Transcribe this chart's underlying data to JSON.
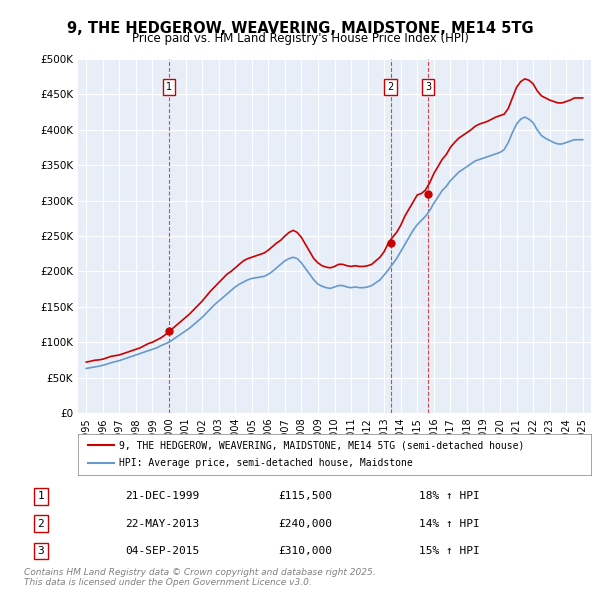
{
  "title": "9, THE HEDGEROW, WEAVERING, MAIDSTONE, ME14 5TG",
  "subtitle": "Price paid vs. HM Land Registry's House Price Index (HPI)",
  "title_fontsize": 11,
  "subtitle_fontsize": 9,
  "background_color": "#e8eef8",
  "plot_bg_color": "#e8eef8",
  "legend_label_red": "9, THE HEDGEROW, WEAVERING, MAIDSTONE, ME14 5TG (semi-detached house)",
  "legend_label_blue": "HPI: Average price, semi-detached house, Maidstone",
  "ylabel": "",
  "xlabel": "",
  "ylim": [
    0,
    500000
  ],
  "yticks": [
    0,
    50000,
    100000,
    150000,
    200000,
    250000,
    300000,
    350000,
    400000,
    450000,
    500000
  ],
  "ytick_labels": [
    "£0",
    "£50K",
    "£100K",
    "£150K",
    "£200K",
    "£250K",
    "£300K",
    "£350K",
    "£400K",
    "£450K",
    "£500K"
  ],
  "sale_dates": [
    "1999-12-21",
    "2013-05-22",
    "2015-09-04"
  ],
  "sale_prices": [
    115500,
    240000,
    310000
  ],
  "sale_labels": [
    "1",
    "2",
    "3"
  ],
  "sale_info": [
    [
      "1",
      "21-DEC-1999",
      "£115,500",
      "18% ↑ HPI"
    ],
    [
      "2",
      "22-MAY-2013",
      "£240,000",
      "14% ↑ HPI"
    ],
    [
      "3",
      "04-SEP-2015",
      "£310,000",
      "15% ↑ HPI"
    ]
  ],
  "footer_text": "Contains HM Land Registry data © Crown copyright and database right 2025.\nThis data is licensed under the Open Government Licence v3.0.",
  "red_color": "#cc0000",
  "blue_color": "#6699cc",
  "red_x": [
    1995.0,
    1995.25,
    1995.5,
    1995.75,
    1996.0,
    1996.25,
    1996.5,
    1996.75,
    1997.0,
    1997.25,
    1997.5,
    1997.75,
    1998.0,
    1998.25,
    1998.5,
    1998.75,
    1999.0,
    1999.25,
    1999.5,
    1999.75,
    2000.0,
    2000.25,
    2000.5,
    2000.75,
    2001.0,
    2001.25,
    2001.5,
    2001.75,
    2002.0,
    2002.25,
    2002.5,
    2002.75,
    2003.0,
    2003.25,
    2003.5,
    2003.75,
    2004.0,
    2004.25,
    2004.5,
    2004.75,
    2005.0,
    2005.25,
    2005.5,
    2005.75,
    2006.0,
    2006.25,
    2006.5,
    2006.75,
    2007.0,
    2007.25,
    2007.5,
    2007.75,
    2008.0,
    2008.25,
    2008.5,
    2008.75,
    2009.0,
    2009.25,
    2009.5,
    2009.75,
    2010.0,
    2010.25,
    2010.5,
    2010.75,
    2011.0,
    2011.25,
    2011.5,
    2011.75,
    2012.0,
    2012.25,
    2012.5,
    2012.75,
    2013.0,
    2013.25,
    2013.5,
    2013.75,
    2014.0,
    2014.25,
    2014.5,
    2014.75,
    2015.0,
    2015.25,
    2015.5,
    2015.75,
    2016.0,
    2016.25,
    2016.5,
    2016.75,
    2017.0,
    2017.25,
    2017.5,
    2017.75,
    2018.0,
    2018.25,
    2018.5,
    2018.75,
    2019.0,
    2019.25,
    2019.5,
    2019.75,
    2020.0,
    2020.25,
    2020.5,
    2020.75,
    2021.0,
    2021.25,
    2021.5,
    2021.75,
    2022.0,
    2022.25,
    2022.5,
    2022.75,
    2023.0,
    2023.25,
    2023.5,
    2023.75,
    2024.0,
    2024.25,
    2024.5,
    2024.75,
    2025.0
  ],
  "red_y": [
    72000,
    73000,
    74500,
    75000,
    76000,
    78000,
    80000,
    81000,
    82000,
    84000,
    86000,
    88000,
    90000,
    92000,
    95000,
    98000,
    100000,
    103000,
    106000,
    110000,
    115500,
    120000,
    125000,
    130000,
    135000,
    140000,
    146000,
    152000,
    158000,
    165000,
    172000,
    178000,
    184000,
    190000,
    196000,
    200000,
    205000,
    210000,
    215000,
    218000,
    220000,
    222000,
    224000,
    226000,
    230000,
    235000,
    240000,
    244000,
    250000,
    255000,
    258000,
    255000,
    248000,
    238000,
    228000,
    218000,
    212000,
    208000,
    206000,
    205000,
    207000,
    210000,
    210000,
    208000,
    207000,
    208000,
    207000,
    207000,
    208000,
    210000,
    215000,
    220000,
    228000,
    240000,
    248000,
    255000,
    265000,
    278000,
    288000,
    298000,
    308000,
    310000,
    315000,
    325000,
    338000,
    348000,
    358000,
    365000,
    375000,
    382000,
    388000,
    392000,
    396000,
    400000,
    405000,
    408000,
    410000,
    412000,
    415000,
    418000,
    420000,
    422000,
    430000,
    445000,
    460000,
    468000,
    472000,
    470000,
    465000,
    455000,
    448000,
    445000,
    442000,
    440000,
    438000,
    438000,
    440000,
    442000,
    445000,
    445000,
    445000
  ],
  "blue_x": [
    1995.0,
    1995.25,
    1995.5,
    1995.75,
    1996.0,
    1996.25,
    1996.5,
    1996.75,
    1997.0,
    1997.25,
    1997.5,
    1997.75,
    1998.0,
    1998.25,
    1998.5,
    1998.75,
    1999.0,
    1999.25,
    1999.5,
    1999.75,
    2000.0,
    2000.25,
    2000.5,
    2000.75,
    2001.0,
    2001.25,
    2001.5,
    2001.75,
    2002.0,
    2002.25,
    2002.5,
    2002.75,
    2003.0,
    2003.25,
    2003.5,
    2003.75,
    2004.0,
    2004.25,
    2004.5,
    2004.75,
    2005.0,
    2005.25,
    2005.5,
    2005.75,
    2006.0,
    2006.25,
    2006.5,
    2006.75,
    2007.0,
    2007.25,
    2007.5,
    2007.75,
    2008.0,
    2008.25,
    2008.5,
    2008.75,
    2009.0,
    2009.25,
    2009.5,
    2009.75,
    2010.0,
    2010.25,
    2010.5,
    2010.75,
    2011.0,
    2011.25,
    2011.5,
    2011.75,
    2012.0,
    2012.25,
    2012.5,
    2012.75,
    2013.0,
    2013.25,
    2013.5,
    2013.75,
    2014.0,
    2014.25,
    2014.5,
    2014.75,
    2015.0,
    2015.25,
    2015.5,
    2015.75,
    2016.0,
    2016.25,
    2016.5,
    2016.75,
    2017.0,
    2017.25,
    2017.5,
    2017.75,
    2018.0,
    2018.25,
    2018.5,
    2018.75,
    2019.0,
    2019.25,
    2019.5,
    2019.75,
    2020.0,
    2020.25,
    2020.5,
    2020.75,
    2021.0,
    2021.25,
    2021.5,
    2021.75,
    2022.0,
    2022.25,
    2022.5,
    2022.75,
    2023.0,
    2023.25,
    2023.5,
    2023.75,
    2024.0,
    2024.25,
    2024.5,
    2024.75,
    2025.0
  ],
  "blue_y": [
    63000,
    64000,
    65000,
    66000,
    67500,
    69000,
    71000,
    72500,
    74000,
    76000,
    78000,
    80000,
    82000,
    84000,
    86000,
    88000,
    90000,
    92000,
    95000,
    97500,
    100000,
    104000,
    108000,
    112000,
    116000,
    120000,
    125000,
    130000,
    135000,
    141000,
    147000,
    153000,
    158000,
    163000,
    168000,
    173000,
    178000,
    182000,
    185000,
    188000,
    190000,
    191000,
    192000,
    193000,
    196000,
    200000,
    205000,
    210000,
    215000,
    218000,
    220000,
    218000,
    212000,
    204000,
    196000,
    188000,
    182000,
    179000,
    177000,
    176000,
    178000,
    180000,
    180000,
    178000,
    177000,
    178000,
    177000,
    177000,
    178000,
    180000,
    184000,
    188000,
    195000,
    202000,
    210000,
    218000,
    228000,
    238000,
    248000,
    258000,
    266000,
    272000,
    278000,
    286000,
    296000,
    305000,
    314000,
    320000,
    328000,
    334000,
    340000,
    344000,
    348000,
    352000,
    356000,
    358000,
    360000,
    362000,
    364000,
    366000,
    368000,
    372000,
    382000,
    396000,
    408000,
    415000,
    418000,
    415000,
    410000,
    400000,
    392000,
    388000,
    385000,
    382000,
    380000,
    380000,
    382000,
    384000,
    386000,
    386000,
    386000
  ]
}
